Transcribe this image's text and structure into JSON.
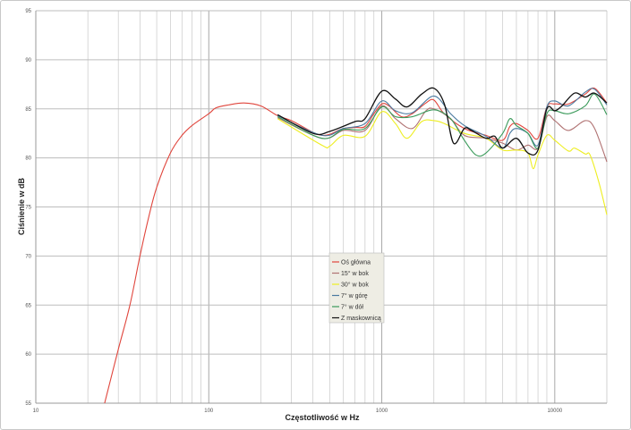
{
  "chart_data": {
    "type": "line",
    "title": "",
    "xlabel": "Częstotliwość w Hz",
    "ylabel": "Ciśnienie w dB",
    "xscale": "log",
    "xlim": [
      10,
      20000
    ],
    "ylim": [
      55,
      95
    ],
    "xticks": [
      "10",
      "100",
      "1000",
      "10000"
    ],
    "yticks": [
      "55",
      "60",
      "65",
      "70",
      "75",
      "80",
      "85",
      "90",
      "95"
    ],
    "grid": true,
    "legend_position": "center-bottom",
    "series": [
      {
        "name": "Oś główna",
        "color": "#e0453c",
        "x": [
          25,
          30,
          35,
          40,
          45,
          50,
          60,
          70,
          80,
          100,
          110,
          130,
          160,
          200,
          250,
          300,
          400,
          450,
          500,
          600,
          700,
          800,
          900,
          1000,
          1100,
          1300,
          1500,
          1800,
          2000,
          2300,
          3000,
          4000,
          5000,
          5500,
          6000,
          7000,
          8000,
          9000,
          10000,
          12000,
          15000,
          17000,
          20000
        ],
        "y": [
          55,
          60.5,
          65,
          70,
          74,
          77,
          80.5,
          82.3,
          83.3,
          84.5,
          85.1,
          85.4,
          85.6,
          85.3,
          84.3,
          83.8,
          82.6,
          82.3,
          82.4,
          83,
          83.1,
          83.2,
          84.5,
          85.5,
          85.3,
          84.2,
          84.5,
          85.6,
          85.9,
          84.5,
          83,
          82.3,
          81.8,
          83.2,
          83.5,
          82.8,
          82,
          85.2,
          85.5,
          85.5,
          86.5,
          87.1,
          85.6
        ]
      },
      {
        "name": "15° w bok",
        "color": "#b07272",
        "x": [
          250,
          450,
          600,
          800,
          1000,
          1200,
          1500,
          1800,
          2000,
          2500,
          3000,
          4000,
          5000,
          6000,
          7000,
          8000,
          9000,
          10000,
          12000,
          15000,
          17000,
          20000
        ],
        "y": [
          84.1,
          82,
          82.8,
          82.8,
          85.3,
          84,
          83,
          84.8,
          85,
          84,
          82.3,
          82,
          81.5,
          80.8,
          81.3,
          81,
          84.2,
          83.8,
          82.8,
          83.8,
          83,
          79.6
        ]
      },
      {
        "name": "30° w bok",
        "color": "#eeee22",
        "x": [
          250,
          450,
          500,
          600,
          800,
          1000,
          1200,
          1400,
          1700,
          2000,
          2300,
          3000,
          4000,
          5000,
          6000,
          7000,
          7500,
          8000,
          9000,
          10000,
          12000,
          13000,
          15000,
          16000,
          18000,
          20000
        ],
        "y": [
          84,
          81.3,
          81.2,
          82.3,
          82.2,
          84.7,
          83.5,
          82,
          83.7,
          83.8,
          83.5,
          82.5,
          82,
          80.8,
          80.8,
          80.5,
          78.9,
          80.3,
          82.3,
          81.8,
          80.7,
          81,
          80.4,
          80.3,
          77.5,
          74.2
        ]
      },
      {
        "name": "7° w górę",
        "color": "#4a7aa0",
        "x": [
          250,
          450,
          600,
          800,
          1000,
          1200,
          1500,
          2000,
          2500,
          3000,
          4000,
          5000,
          5500,
          6000,
          7000,
          8000,
          9000,
          10000,
          12000,
          15000,
          17000,
          20000
        ],
        "y": [
          84.3,
          82.3,
          83,
          83.5,
          85.8,
          84.8,
          84.6,
          86.3,
          84.5,
          83.3,
          82.2,
          81,
          82.5,
          83,
          82.5,
          81.3,
          85.2,
          85.8,
          85.3,
          86.7,
          87,
          85.4
        ]
      },
      {
        "name": "7° w dół",
        "color": "#3a9a5a",
        "x": [
          250,
          450,
          600,
          800,
          1000,
          1200,
          1500,
          2000,
          2500,
          3000,
          3500,
          4000,
          5000,
          5500,
          6000,
          7000,
          8000,
          9000,
          10000,
          12000,
          15000,
          17000,
          20000
        ],
        "y": [
          84.2,
          82,
          82.9,
          83,
          85.2,
          84.2,
          84.2,
          84.9,
          84,
          81.8,
          80.3,
          80.5,
          82.5,
          84,
          83.3,
          82.5,
          81,
          84.5,
          84.8,
          84.5,
          85.3,
          86.5,
          84.4
        ]
      },
      {
        "name": "Z maskownicą",
        "color": "#111111",
        "x": [
          250,
          400,
          500,
          700,
          800,
          1000,
          1200,
          1400,
          1700,
          2000,
          2300,
          2600,
          3000,
          3300,
          4000,
          4500,
          5000,
          6000,
          7000,
          8000,
          9000,
          10000,
          11000,
          13000,
          15000,
          17000,
          20000
        ],
        "y": [
          84.4,
          82.5,
          82.7,
          83.7,
          84,
          86.8,
          86,
          85.2,
          86.5,
          87.1,
          85.5,
          81.5,
          83,
          82.8,
          82,
          82.2,
          81,
          82,
          80.5,
          80.8,
          85,
          84.8,
          85.3,
          86.6,
          86.2,
          86.6,
          85.6
        ]
      }
    ]
  }
}
